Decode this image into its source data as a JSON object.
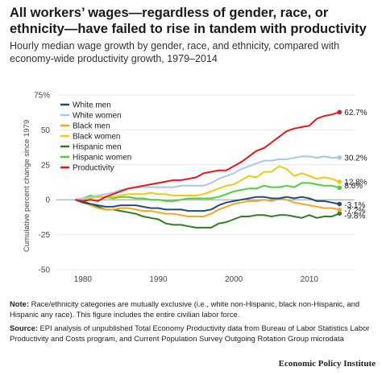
{
  "title": "All workers’ wages—regardless of gender, race, or ethnicity—have failed to rise in tandem with productivity",
  "subtitle": "Hourly median wage growth by gender, race, and ethnicity, compared with economy-wide productivity growth, 1979–2014",
  "note_label": "Note:",
  "note_text": " Race/ethnicity categories are mutually exclusive (i.e., white non-Hispanic, black non-Hispanic, and Hispanic any race). This figure includes the entire civilian labor force.",
  "source_label": "Source:",
  "source_text": " EPI analysis of unpublished Total Economy Productivity data from Bureau of Labor Statistics Labor Productivity and Costs program, and Current Population Survey Outgoing Rotation Group microdata",
  "brand": "Economic Policy Institute",
  "chart_data": {
    "type": "line",
    "ylabel": "Cumulative percent change since 1979",
    "xlabel": "",
    "xlim": [
      1976.5,
      2016
    ],
    "ylim": [
      -50,
      75
    ],
    "x_ticks": [
      1980,
      1990,
      2000,
      2010
    ],
    "y_ticks": [
      -50,
      -25,
      0,
      25,
      50,
      75
    ],
    "y_tick_labels": [
      "-50",
      "-25",
      "0",
      "25",
      "50",
      "75%"
    ],
    "legend_position": "top-left",
    "x": [
      1979,
      1980,
      1981,
      1982,
      1983,
      1984,
      1985,
      1986,
      1987,
      1988,
      1989,
      1990,
      1991,
      1992,
      1993,
      1994,
      1995,
      1996,
      1997,
      1998,
      1999,
      2000,
      2001,
      2002,
      2003,
      2004,
      2005,
      2006,
      2007,
      2008,
      2009,
      2010,
      2011,
      2012,
      2013,
      2014
    ],
    "series": [
      {
        "name": "White men",
        "color": "#1f4e79",
        "end_label": "-3.1%",
        "values": [
          0,
          -2,
          -3,
          -4,
          -5,
          -5,
          -4,
          -4,
          -4,
          -5,
          -6,
          -6,
          -7,
          -7,
          -7,
          -8,
          -8,
          -8,
          -7,
          -4,
          -2,
          -1,
          0,
          1,
          2,
          2,
          1,
          1,
          2,
          1,
          2,
          1,
          -1,
          -1,
          -2,
          -3.1
        ]
      },
      {
        "name": "White women",
        "color": "#a9c6e8",
        "end_label": "30.2%",
        "values": [
          0,
          1,
          2,
          3,
          4,
          5,
          7,
          8,
          9,
          9,
          9,
          9,
          9,
          9,
          10,
          10,
          10,
          10,
          12,
          15,
          17,
          19,
          22,
          24,
          26,
          28,
          28,
          29,
          29,
          30,
          31,
          31,
          30,
          31,
          30,
          30.2
        ]
      },
      {
        "name": "Black men",
        "color": "#f5a623",
        "end_label": "-7.2%",
        "values": [
          0,
          -2,
          -4,
          -6,
          -7,
          -7,
          -6,
          -6,
          -7,
          -8,
          -8,
          -9,
          -10,
          -10,
          -11,
          -12,
          -12,
          -12,
          -10,
          -7,
          -5,
          -3,
          -2,
          -1,
          -1,
          0,
          -1,
          1,
          0,
          -2,
          -3,
          -4,
          -5,
          -6,
          -6,
          -7.2
        ]
      },
      {
        "name": "Black women",
        "color": "#f2c811",
        "end_label": "12.8%",
        "values": [
          0,
          1,
          1,
          2,
          2,
          2,
          3,
          4,
          4,
          4,
          5,
          4,
          4,
          3,
          3,
          3,
          3,
          4,
          6,
          8,
          10,
          11,
          14,
          17,
          16,
          20,
          20,
          24,
          22,
          17,
          19,
          17,
          15,
          16,
          15,
          12.8
        ]
      },
      {
        "name": "Hispanic men",
        "color": "#2f7d1f",
        "end_label": "-9.8%",
        "values": [
          0,
          -1,
          -3,
          -5,
          -7,
          -7,
          -8,
          -9,
          -10,
          -12,
          -13,
          -14,
          -17,
          -18,
          -18,
          -19,
          -20,
          -20,
          -20,
          -17,
          -16,
          -14,
          -12,
          -12,
          -11,
          -11,
          -12,
          -11,
          -11,
          -12,
          -13,
          -11,
          -13,
          -12,
          -12,
          -9.8
        ]
      },
      {
        "name": "Hispanic women",
        "color": "#4cd137",
        "end_label": "8.6%",
        "values": [
          0,
          1,
          3,
          2,
          2,
          1,
          2,
          2,
          1,
          1,
          0,
          0,
          -1,
          -1,
          0,
          1,
          1,
          1,
          1,
          2,
          4,
          6,
          7,
          8,
          8,
          10,
          9,
          9,
          10,
          9,
          12,
          12,
          11,
          10,
          10,
          8.6
        ]
      },
      {
        "name": "Productivity",
        "color": "#e8161b",
        "end_label": "62.7%",
        "values": [
          0,
          -1,
          0,
          -1,
          2,
          4,
          6,
          8,
          9,
          10,
          11,
          12,
          13,
          14,
          14,
          15,
          16,
          19,
          20,
          21,
          21,
          24,
          27,
          31,
          35,
          37,
          41,
          45,
          49,
          51,
          52,
          53,
          58,
          60,
          61,
          62.7
        ]
      }
    ]
  }
}
